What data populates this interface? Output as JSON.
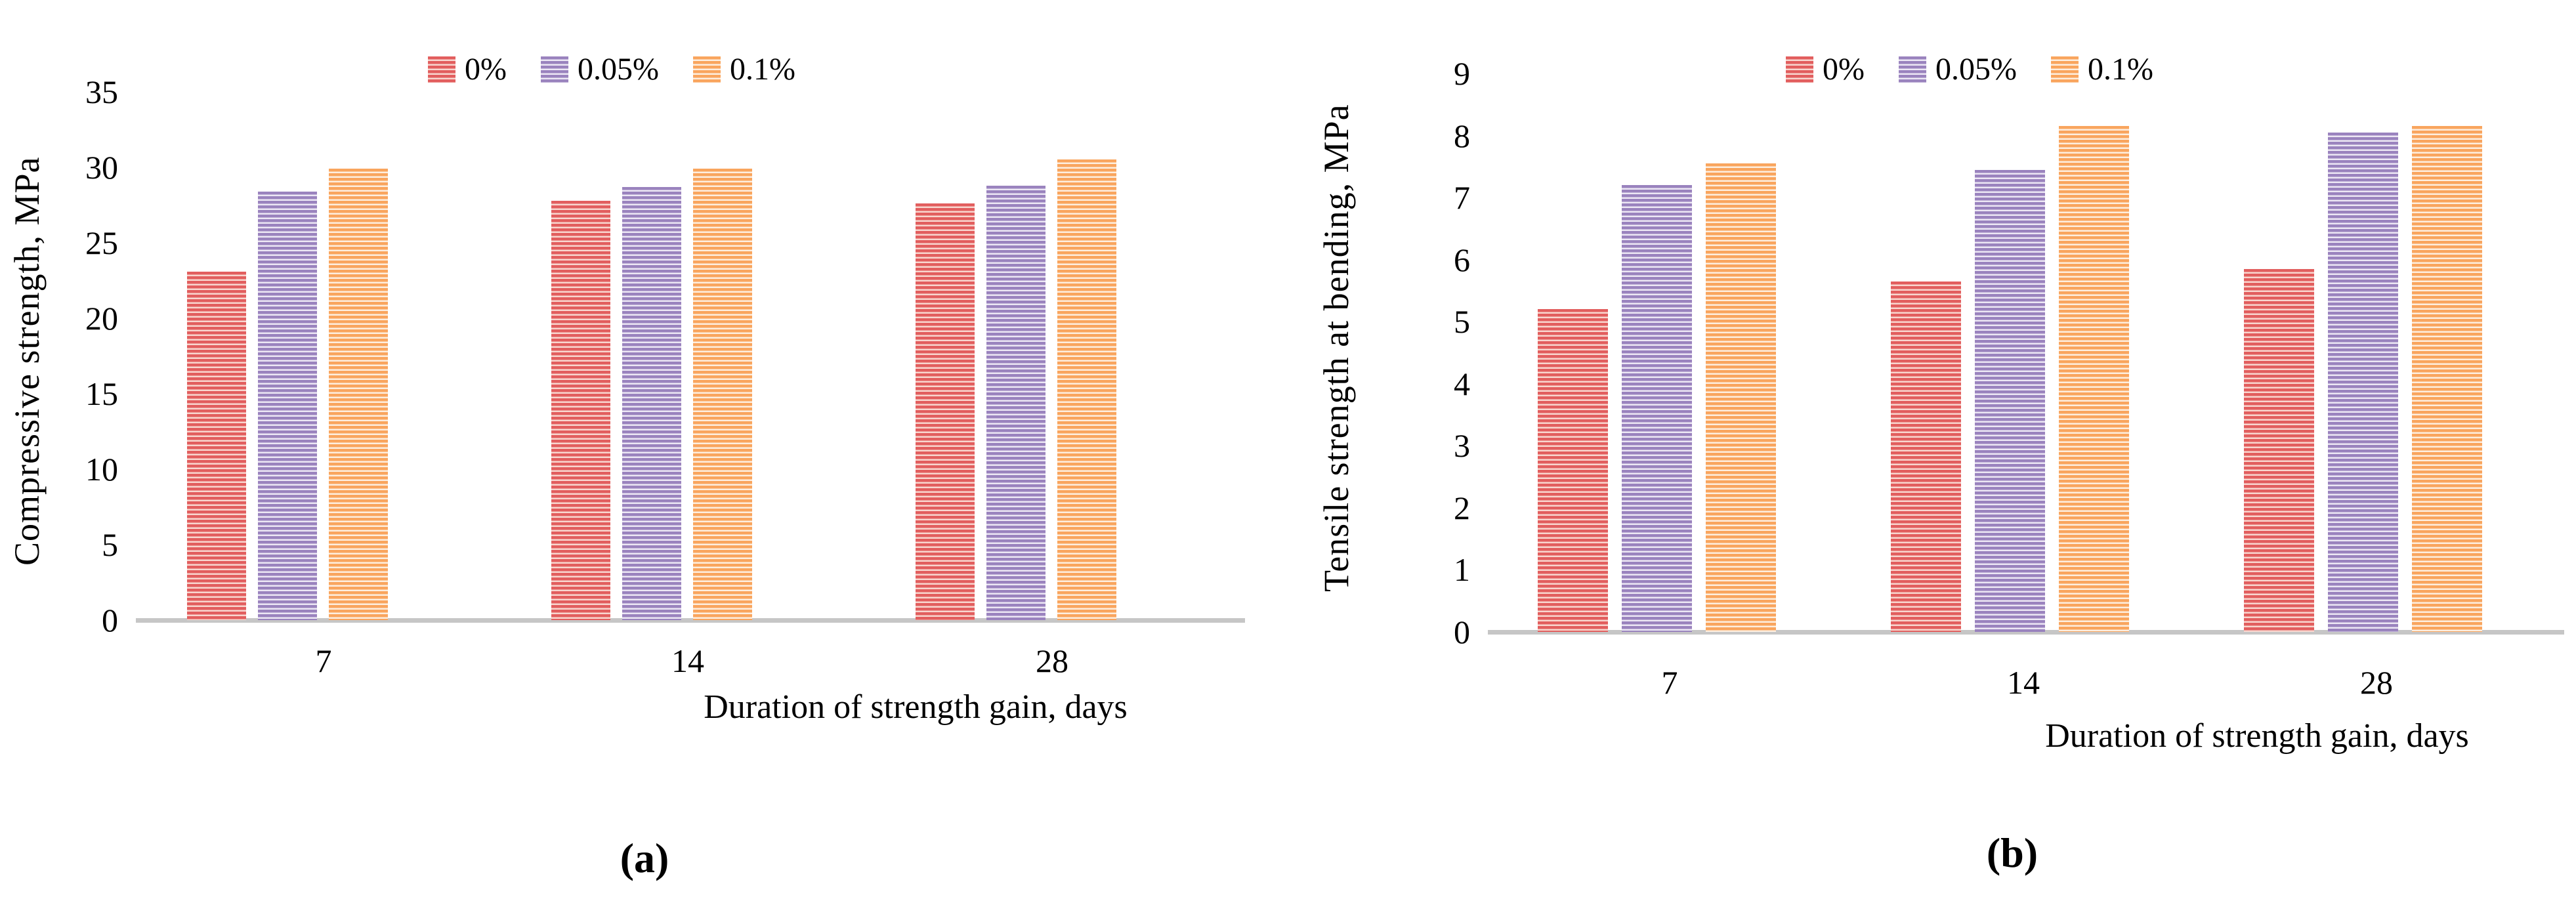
{
  "figure": {
    "panels": [
      {
        "panel_label": "(a)",
        "y_ticks": [
          "0",
          "5",
          "10",
          "15",
          "20",
          "25",
          "30",
          "35"
        ]
      },
      {
        "panel_label": "(b)",
        "y_ticks": [
          "0",
          "1",
          "2",
          "3",
          "4",
          "5",
          "6",
          "7",
          "8",
          "9"
        ]
      }
    ]
  },
  "chart_data": [
    {
      "type": "bar",
      "title": "",
      "categories": [
        "7",
        "14",
        "28"
      ],
      "series": [
        {
          "name": "0%",
          "values": [
            23.1,
            27.8,
            27.6
          ]
        },
        {
          "name": "0.05%",
          "values": [
            28.4,
            28.7,
            28.8
          ]
        },
        {
          "name": "0.1%",
          "values": [
            29.9,
            29.9,
            30.5
          ]
        }
      ],
      "xlabel": "Duration of strength gain, days",
      "ylabel": "Compressive strength, MPa",
      "ylim": [
        0,
        35
      ],
      "ytick_step": 5,
      "legend_position": "top",
      "grid": false
    },
    {
      "type": "bar",
      "title": "",
      "categories": [
        "7",
        "14",
        "28"
      ],
      "series": [
        {
          "name": "0%",
          "values": [
            5.2,
            5.65,
            5.85
          ]
        },
        {
          "name": "0.05%",
          "values": [
            7.2,
            7.45,
            8.05
          ]
        },
        {
          "name": "0.1%",
          "values": [
            7.55,
            8.15,
            8.15
          ]
        }
      ],
      "xlabel": "Duration of strength gain, days",
      "ylabel": "Tensile strength at bending, MPa",
      "ylim": [
        0,
        9
      ],
      "ytick_step": 1,
      "legend_position": "top",
      "grid": false
    }
  ],
  "colors": {
    "series": [
      {
        "name": "0%",
        "main": "#E25E5E",
        "light": "#F8D6CF"
      },
      {
        "name": "0.05%",
        "main": "#9A83BE",
        "light": "#ECE7F4"
      },
      {
        "name": "0.1%",
        "main": "#F9A55E",
        "light": "#FDEEDF"
      }
    ],
    "axis_line": "#C6C6C6",
    "text": "#000000"
  }
}
